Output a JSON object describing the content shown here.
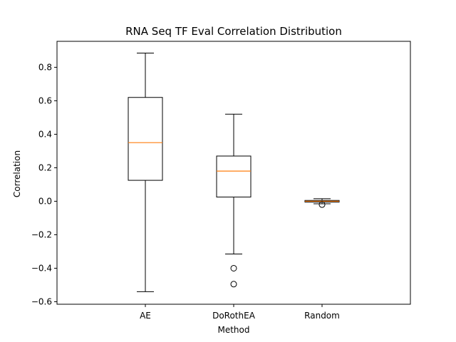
{
  "chart_data": {
    "type": "boxplot",
    "title": "RNA Seq TF Eval Correlation Distribution",
    "xlabel": "Method",
    "ylabel": "Correlation",
    "ylim": [
      -0.615,
      0.955
    ],
    "yticks": [
      -0.6,
      -0.4,
      -0.2,
      0.0,
      0.2,
      0.4,
      0.6,
      0.8
    ],
    "ytick_labels": [
      "−0.6",
      "−0.4",
      "−0.2",
      "0.0",
      "0.2",
      "0.4",
      "0.6",
      "0.8"
    ],
    "grid": false,
    "legend": "none",
    "categories": [
      "AE",
      "DoRothEA",
      "Random"
    ],
    "boxes": [
      {
        "label": "AE",
        "whisker_low": -0.54,
        "q1": 0.125,
        "median": 0.35,
        "q3": 0.62,
        "whisker_high": 0.885,
        "outliers": []
      },
      {
        "label": "DoRothEA",
        "whisker_low": -0.315,
        "q1": 0.025,
        "median": 0.18,
        "q3": 0.27,
        "whisker_high": 0.52,
        "outliers": [
          -0.4,
          -0.495
        ]
      },
      {
        "label": "Random",
        "whisker_low": -0.015,
        "q1": -0.005,
        "median": 0.0,
        "q3": 0.005,
        "whisker_high": 0.015,
        "outliers": [
          -0.02
        ]
      }
    ],
    "colors": {
      "box": "#000000",
      "median": "#ff7f0e",
      "outlier": "#000000"
    }
  }
}
